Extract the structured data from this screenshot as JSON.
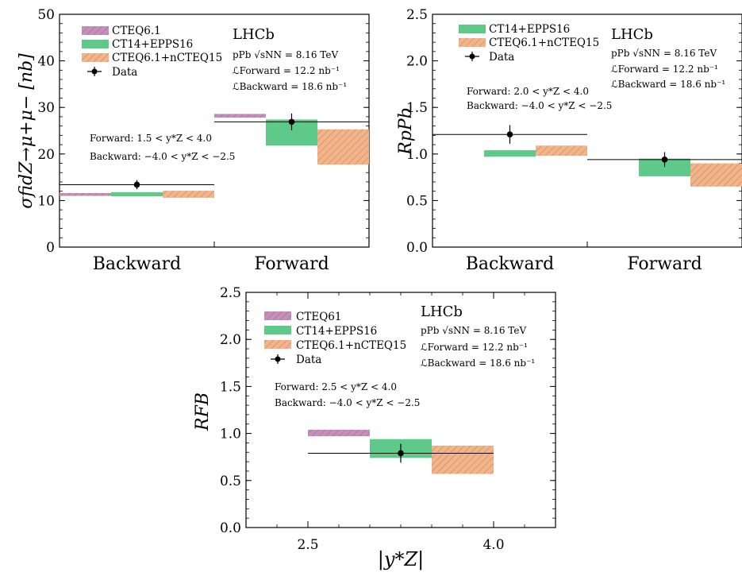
{
  "chart_data": [
    {
      "type": "bar",
      "ylabel": "σfidZ→μ+μ− [nb]",
      "ylim": [
        0,
        50
      ],
      "yticks": [
        0,
        10,
        20,
        30,
        40,
        50
      ],
      "categories": [
        "Backward",
        "Forward"
      ],
      "experiment": "LHCb",
      "annotations": [
        "pPb √sNN = 8.16 TeV",
        "ℒForward = 12.2 nb⁻¹",
        "ℒBackward = 18.6 nb⁻¹"
      ],
      "ranges": [
        "Forward: 1.5 < y*Z < 4.0",
        "Backward: −4.0 < y*Z < −2.5"
      ],
      "legend": [
        "CTEQ6.1",
        "CT14+EPPS16",
        "CTEQ6.1+nCTEQ15",
        "Data"
      ],
      "series": [
        {
          "name": "CTEQ6.1",
          "color": "#c490b8",
          "lo": [
            11.0,
            27.8
          ],
          "hi": [
            11.6,
            28.6
          ]
        },
        {
          "name": "CT14+EPPS16",
          "color": "#5fc98a",
          "lo": [
            10.9,
            21.8
          ],
          "hi": [
            11.8,
            27.4
          ]
        },
        {
          "name": "CTEQ6.1+nCTEQ15",
          "color": "#f0a878",
          "lo": [
            10.6,
            17.7
          ],
          "hi": [
            12.1,
            25.3
          ]
        }
      ],
      "data": {
        "name": "Data",
        "values": [
          13.4,
          26.9
        ],
        "err": [
          1.0,
          1.8
        ]
      }
    },
    {
      "type": "bar",
      "ylabel": "RpPb",
      "ylim": [
        0,
        2.5
      ],
      "yticks": [
        "0.0",
        "0.5",
        "1.0",
        "1.5",
        "2.0",
        "2.5"
      ],
      "categories": [
        "Backward",
        "Forward"
      ],
      "experiment": "LHCb",
      "annotations": [
        "pPb √sNN = 8.16 TeV",
        "ℒForward = 12.2 nb⁻¹",
        "ℒBackward = 18.6 nb⁻¹"
      ],
      "ranges": [
        "Forward: 2.0 < y*Z < 4.0",
        "Backward: −4.0 < y*Z < −2.5"
      ],
      "legend": [
        "CT14+EPPS16",
        "CTEQ6.1+nCTEQ15",
        "Data"
      ],
      "series": [
        {
          "name": "CT14+EPPS16",
          "color": "#5fc98a",
          "lo": [
            0.97,
            0.76
          ],
          "hi": [
            1.04,
            0.95
          ]
        },
        {
          "name": "CTEQ6.1+nCTEQ15",
          "color": "#f0a878",
          "lo": [
            0.98,
            0.65
          ],
          "hi": [
            1.09,
            0.9
          ]
        }
      ],
      "data": {
        "name": "Data",
        "values": [
          1.21,
          0.94
        ],
        "err": [
          0.1,
          0.08
        ]
      }
    },
    {
      "type": "bar",
      "ylabel": "RFB",
      "xlabel": "|y*Z|",
      "ylim": [
        0,
        2.5
      ],
      "xlim": [
        2.0,
        4.5
      ],
      "yticks": [
        "0.0",
        "0.5",
        "1.0",
        "1.5",
        "2.0",
        "2.5"
      ],
      "xticks": [
        "2.5",
        "4.0"
      ],
      "experiment": "LHCb",
      "annotations": [
        "pPb √sNN = 8.16 TeV",
        "ℒForward = 12.2 nb⁻¹",
        "ℒBackward = 18.6 nb⁻¹"
      ],
      "ranges": [
        "Forward: 2.5 < y*Z < 4.0",
        "Backward: −4.0 < y*Z < −2.5"
      ],
      "legend": [
        "CTEQ61",
        "CT14+EPPS16",
        "CTEQ6.1+nCTEQ15",
        "Data"
      ],
      "series": [
        {
          "name": "CTEQ61",
          "color": "#c490b8",
          "lo": 0.97,
          "hi": 1.04
        },
        {
          "name": "CT14+EPPS16",
          "color": "#5fc98a",
          "lo": 0.74,
          "hi": 0.94
        },
        {
          "name": "CTEQ6.1+nCTEQ15",
          "color": "#f0a878",
          "lo": 0.57,
          "hi": 0.87
        }
      ],
      "data": {
        "name": "Data",
        "x": 3.25,
        "value": 0.79,
        "err": 0.1
      }
    }
  ]
}
